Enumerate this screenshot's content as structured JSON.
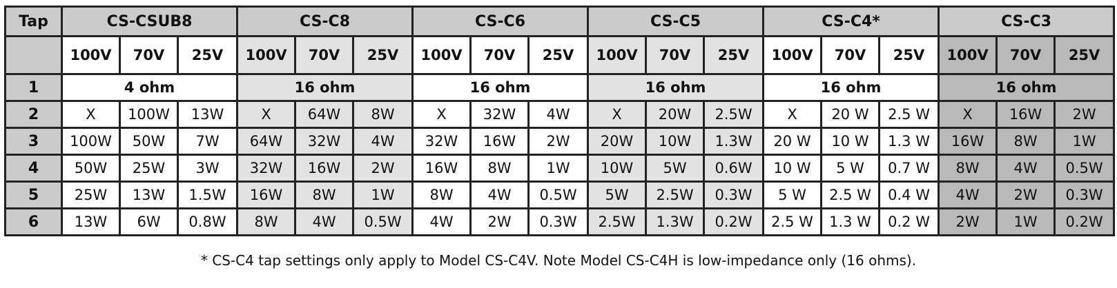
{
  "table": {
    "tap_header": "Tap",
    "models": [
      {
        "name": "CS-CSUB8",
        "voltages": [
          "100V",
          "70V",
          "25V"
        ]
      },
      {
        "name": "CS-C8",
        "voltages": [
          "100V",
          "70V",
          "25V"
        ]
      },
      {
        "name": "CS-C6",
        "voltages": [
          "100V",
          "70V",
          "25V"
        ]
      },
      {
        "name": "CS-C5",
        "voltages": [
          "100V",
          "70V",
          "25V"
        ]
      },
      {
        "name": "CS-C4*",
        "voltages": [
          "100V",
          "70V",
          "25V"
        ]
      },
      {
        "name": "CS-C3",
        "voltages": [
          "100V",
          "70V",
          "25V"
        ]
      }
    ],
    "rows": [
      {
        "tap": "1",
        "cells": [
          "4 ohm",
          "16 ohm",
          "16 ohm",
          "16 ohm",
          "16 ohm",
          "16 ohm"
        ]
      },
      {
        "tap": "2",
        "cells": [
          [
            "X",
            "100W",
            "13W"
          ],
          [
            "X",
            "64W",
            "8W"
          ],
          [
            "X",
            "32W",
            "4W"
          ],
          [
            "X",
            "20W",
            "2.5W"
          ],
          [
            "X",
            "20 W",
            "2.5 W"
          ],
          [
            "X",
            "16W",
            "2W"
          ]
        ]
      },
      {
        "tap": "3",
        "cells": [
          [
            "100W",
            "50W",
            "7W"
          ],
          [
            "64W",
            "32W",
            "4W"
          ],
          [
            "32W",
            "16W",
            "2W"
          ],
          [
            "20W",
            "10W",
            "1.3W"
          ],
          [
            "20 W",
            "10 W",
            "1.3 W"
          ],
          [
            "16W",
            "8W",
            "1W"
          ]
        ]
      },
      {
        "tap": "4",
        "cells": [
          [
            "50W",
            "25W",
            "3W"
          ],
          [
            "32W",
            "16W",
            "2W"
          ],
          [
            "16W",
            "8W",
            "1W"
          ],
          [
            "10W",
            "5W",
            "0.6W"
          ],
          [
            "10 W",
            "5 W",
            "0.7 W"
          ],
          [
            "8W",
            "4W",
            "0.5W"
          ]
        ]
      },
      {
        "tap": "5",
        "cells": [
          [
            "25W",
            "13W",
            "1.5W"
          ],
          [
            "16W",
            "8W",
            "1W"
          ],
          [
            "8W",
            "4W",
            "0.5W"
          ],
          [
            "5W",
            "2.5W",
            "0.3W"
          ],
          [
            "5 W",
            "2.5 W",
            "0.4 W"
          ],
          [
            "4W",
            "2W",
            "0.3W"
          ]
        ]
      },
      {
        "tap": "6",
        "cells": [
          [
            "13W",
            "6W",
            "0.8W"
          ],
          [
            "8W",
            "4W",
            "0.5W"
          ],
          [
            "4W",
            "2W",
            "0.3W"
          ],
          [
            "2.5W",
            "1.3W",
            "0.2W"
          ],
          [
            "2.5 W",
            "1.3 W",
            "0.2 W"
          ],
          [
            "2W",
            "1W",
            "0.2W"
          ]
        ]
      }
    ]
  },
  "footnote": "* CS-C4 tap settings only apply to Model CS-C4V. Note Model CS-C4H is low-impedance only (16 ohms)."
}
